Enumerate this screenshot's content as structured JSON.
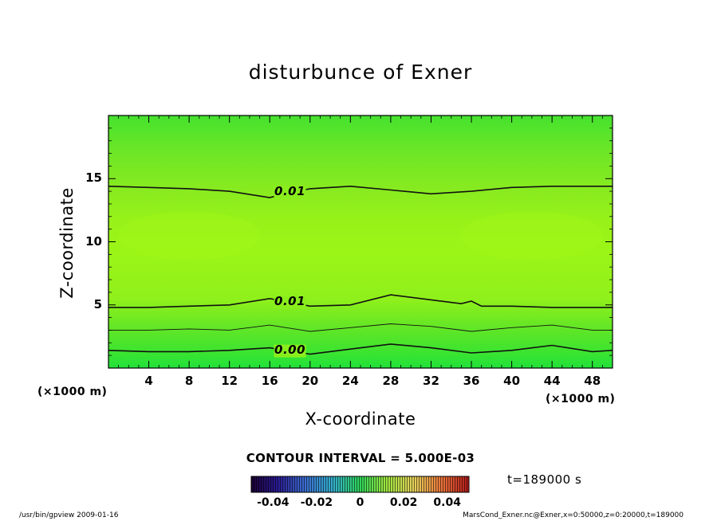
{
  "chart_data": {
    "type": "contour",
    "title": "disturbunce of Exner",
    "xlabel": "X-coordinate",
    "ylabel": "Z-coordinate",
    "x_unit_label": "(×1000 m)",
    "y_unit_label": "(×1000 m)",
    "xlim": [
      0,
      50
    ],
    "ylim": [
      0,
      20
    ],
    "x_ticks": [
      4,
      8,
      12,
      16,
      20,
      24,
      28,
      32,
      36,
      40,
      44,
      48
    ],
    "y_ticks": [
      5,
      10,
      15
    ],
    "contour_interval_label": "CONTOUR INTERVAL = 5.000E-03",
    "time_label": "t=189000 s",
    "contours": [
      {
        "level_label": "0.01",
        "x": [
          0,
          4,
          8,
          12,
          16,
          18,
          20,
          24,
          28,
          32,
          36,
          40,
          44,
          48,
          50
        ],
        "z": [
          14.4,
          14.3,
          14.2,
          14.0,
          13.5,
          13.9,
          14.2,
          14.4,
          14.1,
          13.8,
          14.0,
          14.3,
          14.4,
          14.4,
          14.4
        ]
      },
      {
        "level_label": "0.01",
        "x": [
          0,
          4,
          8,
          12,
          16,
          20,
          24,
          28,
          32,
          35,
          36,
          37,
          40,
          44,
          48,
          50
        ],
        "z": [
          4.8,
          4.8,
          4.9,
          5.0,
          5.5,
          4.9,
          5.0,
          5.8,
          5.4,
          5.1,
          5.3,
          4.9,
          4.9,
          4.8,
          4.8,
          4.8
        ]
      },
      {
        "level_label": "",
        "x": [
          0,
          4,
          8,
          12,
          16,
          20,
          24,
          28,
          32,
          36,
          40,
          44,
          48,
          50
        ],
        "z": [
          3.0,
          3.0,
          3.1,
          3.0,
          3.4,
          2.9,
          3.2,
          3.5,
          3.3,
          2.9,
          3.2,
          3.4,
          3.0,
          3.0
        ]
      },
      {
        "level_label": "0.00",
        "x": [
          0,
          4,
          8,
          12,
          16,
          20,
          24,
          28,
          32,
          36,
          40,
          44,
          48,
          50
        ],
        "z": [
          1.4,
          1.3,
          1.3,
          1.4,
          1.6,
          1.1,
          1.5,
          1.9,
          1.6,
          1.2,
          1.4,
          1.8,
          1.3,
          1.4
        ]
      }
    ],
    "colorbar": {
      "range": [
        -0.05,
        0.05
      ],
      "tick_labels": [
        "-0.04",
        "-0.02",
        "0",
        "0.02",
        "0.04"
      ],
      "tick_values": [
        -0.04,
        -0.02,
        0,
        0.02,
        0.04
      ]
    },
    "fill_colors": {
      "bottom": "#27e63c",
      "mid_low": "#5fe427",
      "core": "#96f21a",
      "upper": "#7fe826",
      "top": "#3de433"
    }
  },
  "footer": {
    "left": "/usr/bin/gpview   2009-01-16",
    "right": "MarsCond_Exner.nc@Exner,x=0:50000,z=0:20000,t=189000"
  }
}
